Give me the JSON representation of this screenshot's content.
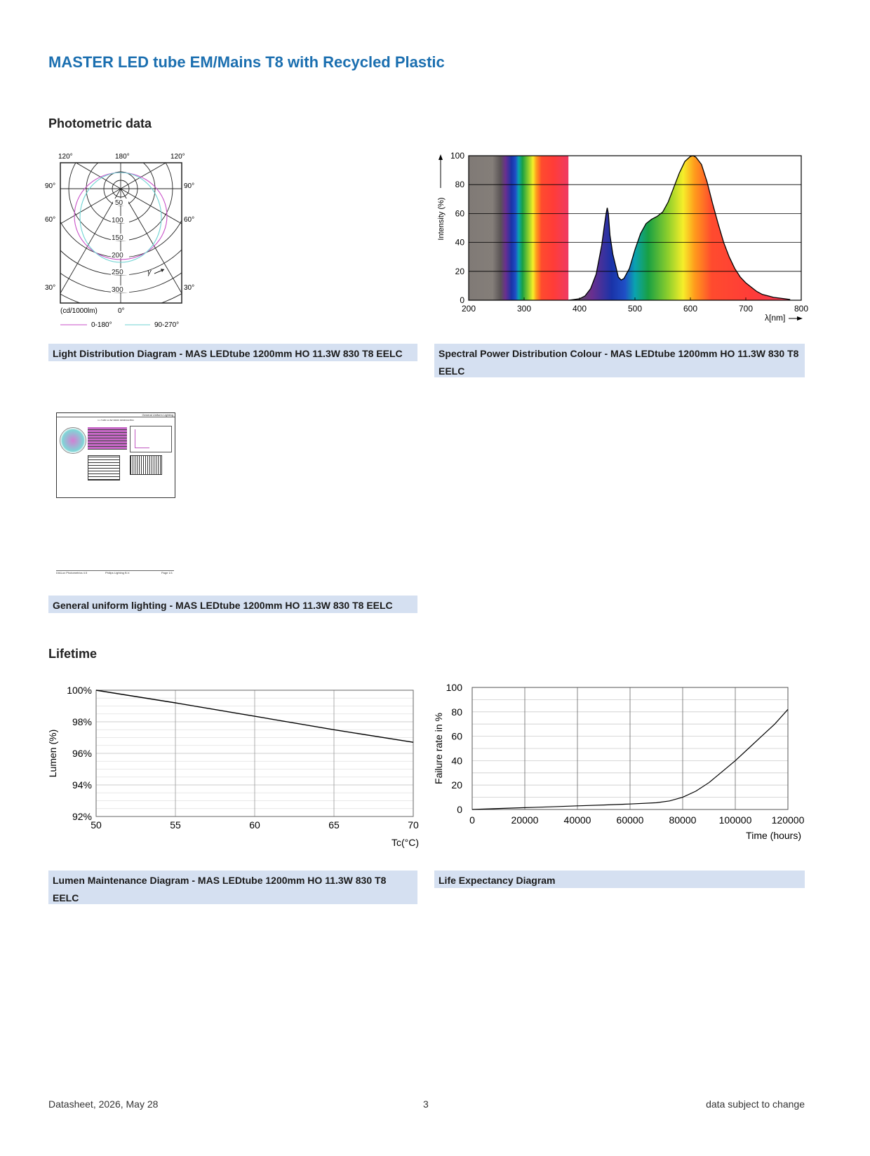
{
  "document": {
    "title": "MASTER LED tube EM/Mains T8 with Recycled Plastic",
    "photometric_section": "Photometric data",
    "lifetime_section": "Lifetime"
  },
  "captions": {
    "light_distribution": "Light Distribution Diagram - MAS LEDtube 1200mm HO 11.3W 830 T8 EELC",
    "spectral": "Spectral Power Distribution Colour - MAS LEDtube 1200mm HO 11.3W 830 T8 EELC",
    "uniform": "General uniform lighting - MAS LEDtube 1200mm HO 11.3W 830 T8 EELC",
    "lumen_maintenance": "Lumen Maintenance Diagram - MAS LEDtube 1200mm HO 11.3W 830 T8 EELC",
    "life_expectancy": "Life Expectancy Diagram"
  },
  "polar": {
    "top_labels": [
      "120°",
      "180°",
      "120°"
    ],
    "side_labels": [
      "90°",
      "60°",
      "30°"
    ],
    "radial_labels": [
      "50",
      "100",
      "150",
      "200",
      "250",
      "300"
    ],
    "bottom_label": "0°",
    "unit": "(cd/1000lm)",
    "gamma": "γ",
    "legend": [
      "0-180°",
      "90-270°"
    ],
    "colors": {
      "c0": "#c84fc8",
      "c90": "#6fd3d3"
    }
  },
  "thumbnail": {
    "header": "General Uniform Lighting",
    "subtitle": "1 x TL8D 11.3W 3000K 929003413531",
    "footer_left": "DIALux Photometrics 4.5",
    "footer_mid": "Philips Lighting B.V.",
    "footer_right": "Page 1/1"
  },
  "footer": {
    "left": "Datasheet, 2026, May 28",
    "center": "3",
    "right": "data subject to change"
  },
  "chart_data": [
    {
      "type": "area",
      "name": "spectral",
      "title": "",
      "xlabel": "λ[nm]",
      "ylabel": "Intensity (%)",
      "xlim": [
        200,
        800
      ],
      "ylim": [
        0,
        100
      ],
      "x_ticks": [
        200,
        300,
        400,
        500,
        600,
        700,
        800
      ],
      "y_ticks": [
        0,
        20,
        40,
        60,
        80,
        100
      ],
      "x": [
        380,
        390,
        400,
        410,
        420,
        430,
        440,
        445,
        448,
        450,
        452,
        455,
        460,
        465,
        470,
        475,
        480,
        490,
        500,
        510,
        520,
        530,
        540,
        550,
        560,
        570,
        580,
        590,
        600,
        605,
        610,
        620,
        630,
        640,
        650,
        660,
        670,
        680,
        690,
        700,
        710,
        720,
        730,
        740,
        750,
        760,
        770,
        780
      ],
      "values": [
        0,
        0.5,
        1,
        3,
        8,
        18,
        38,
        52,
        60,
        64,
        60,
        45,
        32,
        24,
        16,
        14,
        15,
        22,
        35,
        46,
        53,
        56,
        58,
        61,
        68,
        78,
        88,
        96,
        99.5,
        100,
        99,
        94,
        82,
        67,
        53,
        40,
        30,
        22,
        16,
        12,
        9,
        6,
        4,
        3,
        2,
        1.5,
        1,
        0.5
      ],
      "gradient_stops": [
        {
          "offset": 0.0,
          "color": "#807a76"
        },
        {
          "offset": 0.24,
          "color": "#847e79"
        },
        {
          "offset": 0.32,
          "color": "#5a5455"
        },
        {
          "offset": 0.37,
          "color": "#6a2f8f"
        },
        {
          "offset": 0.43,
          "color": "#1a33a8"
        },
        {
          "offset": 0.47,
          "color": "#1f4fc6"
        },
        {
          "offset": 0.5,
          "color": "#0aa3b0"
        },
        {
          "offset": 0.54,
          "color": "#19a043"
        },
        {
          "offset": 0.6,
          "color": "#8fcf2c"
        },
        {
          "offset": 0.645,
          "color": "#f6ee2a"
        },
        {
          "offset": 0.68,
          "color": "#ff9a1c"
        },
        {
          "offset": 0.73,
          "color": "#ff4b2e"
        },
        {
          "offset": 0.85,
          "color": "#ff3c38"
        },
        {
          "offset": 1.0,
          "color": "#ef3b63"
        }
      ]
    },
    {
      "type": "line",
      "name": "lumen_maintenance",
      "title": "",
      "xlabel": "Tc(°C)",
      "ylabel": "Lumen (%)",
      "xlim": [
        50,
        70
      ],
      "ylim": [
        92,
        100
      ],
      "x_ticks": [
        50,
        55,
        60,
        65,
        70
      ],
      "y_ticks": [
        92,
        94,
        96,
        98,
        100
      ],
      "y_tick_labels": [
        "92%",
        "94%",
        "96%",
        "98%",
        "100%"
      ],
      "x": [
        50,
        55,
        60,
        65,
        70
      ],
      "values": [
        100,
        99.2,
        98.35,
        97.5,
        96.7
      ]
    },
    {
      "type": "line",
      "name": "life_expectancy",
      "title": "",
      "xlabel": "Time (hours)",
      "ylabel": "Failure rate in %",
      "xlim": [
        0,
        120000
      ],
      "ylim": [
        0,
        100
      ],
      "x_ticks": [
        0,
        20000,
        40000,
        60000,
        80000,
        100000,
        120000
      ],
      "y_ticks": [
        0,
        20,
        40,
        60,
        80,
        100
      ],
      "x": [
        0,
        10000,
        20000,
        30000,
        40000,
        50000,
        60000,
        70000,
        75000,
        80000,
        85000,
        90000,
        95000,
        100000,
        105000,
        110000,
        115000,
        120000
      ],
      "values": [
        0,
        0.8,
        1.5,
        2.2,
        3,
        3.7,
        4.5,
        5.5,
        7,
        10,
        15,
        22,
        31,
        40,
        50,
        60,
        70,
        82
      ]
    }
  ]
}
